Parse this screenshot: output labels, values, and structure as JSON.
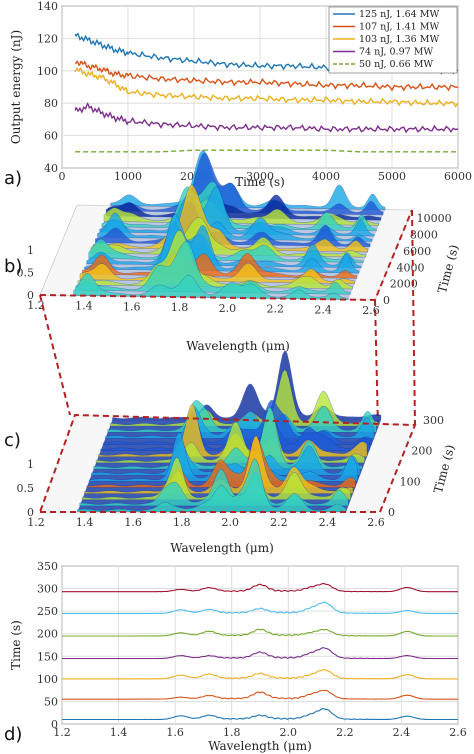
{
  "panels": {
    "a": "a)",
    "b": "b)",
    "c": "c)",
    "d": "d)"
  },
  "chart_data": [
    {
      "id": "a",
      "type": "line",
      "xlabel": "Time (s)",
      "ylabel": "Output energy (nJ)",
      "xlim": [
        0,
        6000
      ],
      "ylim": [
        40,
        140
      ],
      "xticks": [
        0,
        1000,
        2000,
        3000,
        4000,
        5000,
        6000
      ],
      "yticks": [
        40,
        60,
        80,
        100,
        120,
        140
      ],
      "grid": true,
      "legend": "top-right",
      "series": [
        {
          "name": "125 nJ, 1.64 MW",
          "color": "#1f77b4",
          "dash": false,
          "x": [
            200,
            400,
            600,
            800,
            1000,
            1500,
            2000,
            2500,
            3000,
            3500,
            4000,
            4500,
            5000,
            5500,
            6000
          ],
          "y": [
            122,
            119,
            116,
            113,
            111,
            108,
            106,
            104,
            103,
            103,
            102,
            101,
            101,
            100,
            100
          ]
        },
        {
          "name": "107 nJ, 1.41 MW",
          "color": "#d95319",
          "dash": false,
          "x": [
            200,
            400,
            600,
            800,
            1000,
            1500,
            2000,
            2500,
            3000,
            3500,
            4000,
            4500,
            5000,
            5500,
            6000
          ],
          "y": [
            106,
            103,
            101,
            98,
            97,
            95,
            94,
            93,
            93,
            92,
            91,
            91,
            90,
            90,
            90
          ]
        },
        {
          "name": "103 nJ, 1.36 MW",
          "color": "#edb120",
          "dash": false,
          "x": [
            200,
            400,
            600,
            800,
            1000,
            1500,
            2000,
            2500,
            3000,
            3500,
            4000,
            4500,
            5000,
            5500,
            6000
          ],
          "y": [
            101,
            98,
            96,
            92,
            87,
            85,
            84,
            83,
            83,
            82,
            82,
            81,
            81,
            80,
            80
          ]
        },
        {
          "name": "74 nJ, 0.97 MW",
          "color": "#7e2f8e",
          "dash": false,
          "x": [
            200,
            400,
            600,
            800,
            1000,
            1500,
            2000,
            2500,
            3000,
            3500,
            4000,
            4500,
            5000,
            5500,
            6000
          ],
          "y": [
            75,
            78,
            74,
            71,
            69,
            67,
            66,
            65,
            65,
            65,
            64,
            64,
            64,
            64,
            64
          ]
        },
        {
          "name": "50 nJ, 0.66 MW",
          "color": "#77ac30",
          "dash": true,
          "x": [
            200,
            400,
            600,
            800,
            1000,
            1500,
            2000,
            2500,
            3000,
            3500,
            4000,
            4500,
            5000,
            5500,
            6000
          ],
          "y": [
            50,
            50,
            50,
            50,
            50,
            50,
            51,
            51,
            51,
            51,
            51,
            50,
            50,
            50,
            50
          ]
        }
      ]
    },
    {
      "id": "b",
      "type": "area",
      "xlabel": "Wavelength (μm)",
      "ylabel": "Time (s)",
      "xticks": [
        1.2,
        1.4,
        1.6,
        1.8,
        2.0,
        2.2,
        2.4,
        2.6
      ],
      "yticks": [
        0,
        2000,
        4000,
        6000,
        8000,
        10000
      ],
      "zticks": [
        0,
        0.5,
        1
      ],
      "xlim": [
        1.2,
        2.6
      ],
      "ylim": [
        0,
        11000
      ],
      "zlim": [
        0,
        1
      ]
    },
    {
      "id": "c",
      "type": "area",
      "xlabel": "Wavelength (μm)",
      "ylabel": "Time (s)",
      "xticks": [
        1.2,
        1.4,
        1.6,
        1.8,
        2.0,
        2.2,
        2.4,
        2.6
      ],
      "yticks": [
        0,
        100,
        200,
        300
      ],
      "zticks": [
        0,
        0.5,
        1
      ],
      "xlim": [
        1.2,
        2.6
      ],
      "ylim": [
        0,
        300
      ],
      "zlim": [
        0,
        1
      ]
    },
    {
      "id": "d",
      "type": "line",
      "xlabel": "Wavelength (μm)",
      "ylabel": "Time (s)",
      "xlim": [
        1.2,
        2.6
      ],
      "ylim": [
        0,
        350
      ],
      "xticks": [
        1.2,
        1.4,
        1.6,
        1.8,
        2.0,
        2.2,
        2.4,
        2.6
      ],
      "yticks": [
        0,
        50,
        100,
        150,
        200,
        250,
        300,
        350
      ],
      "grid": true,
      "offsets": [
        10,
        55,
        100,
        145,
        195,
        245,
        293
      ],
      "colors": [
        "#1f77b4",
        "#d95319",
        "#edb120",
        "#7e2f8e",
        "#77ac30",
        "#4dbeee",
        "#a2142f"
      ]
    }
  ]
}
